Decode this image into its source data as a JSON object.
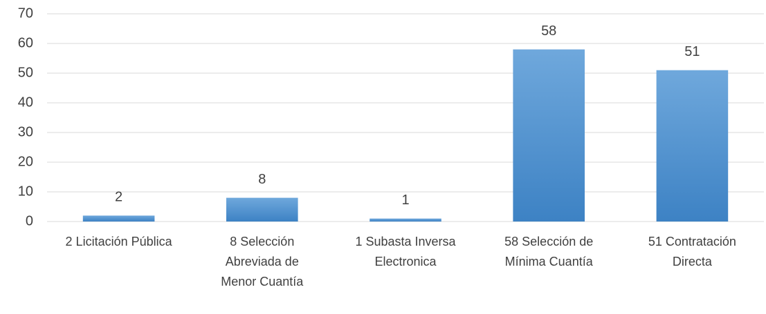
{
  "chart_data": {
    "type": "bar",
    "categories": [
      "2 Licitación Pública",
      "8 Selección Abreviada de Menor Cuantía",
      "1 Subasta Inversa Electronica",
      "58 Selección de Mínima Cuantía",
      "51 Contratación Directa"
    ],
    "values": [
      2,
      8,
      1,
      58,
      51
    ],
    "color": "#5b9bd5",
    "ylim": [
      0,
      70
    ],
    "yticks": [
      0,
      10,
      20,
      30,
      40,
      50,
      60,
      70
    ],
    "grid": true
  }
}
